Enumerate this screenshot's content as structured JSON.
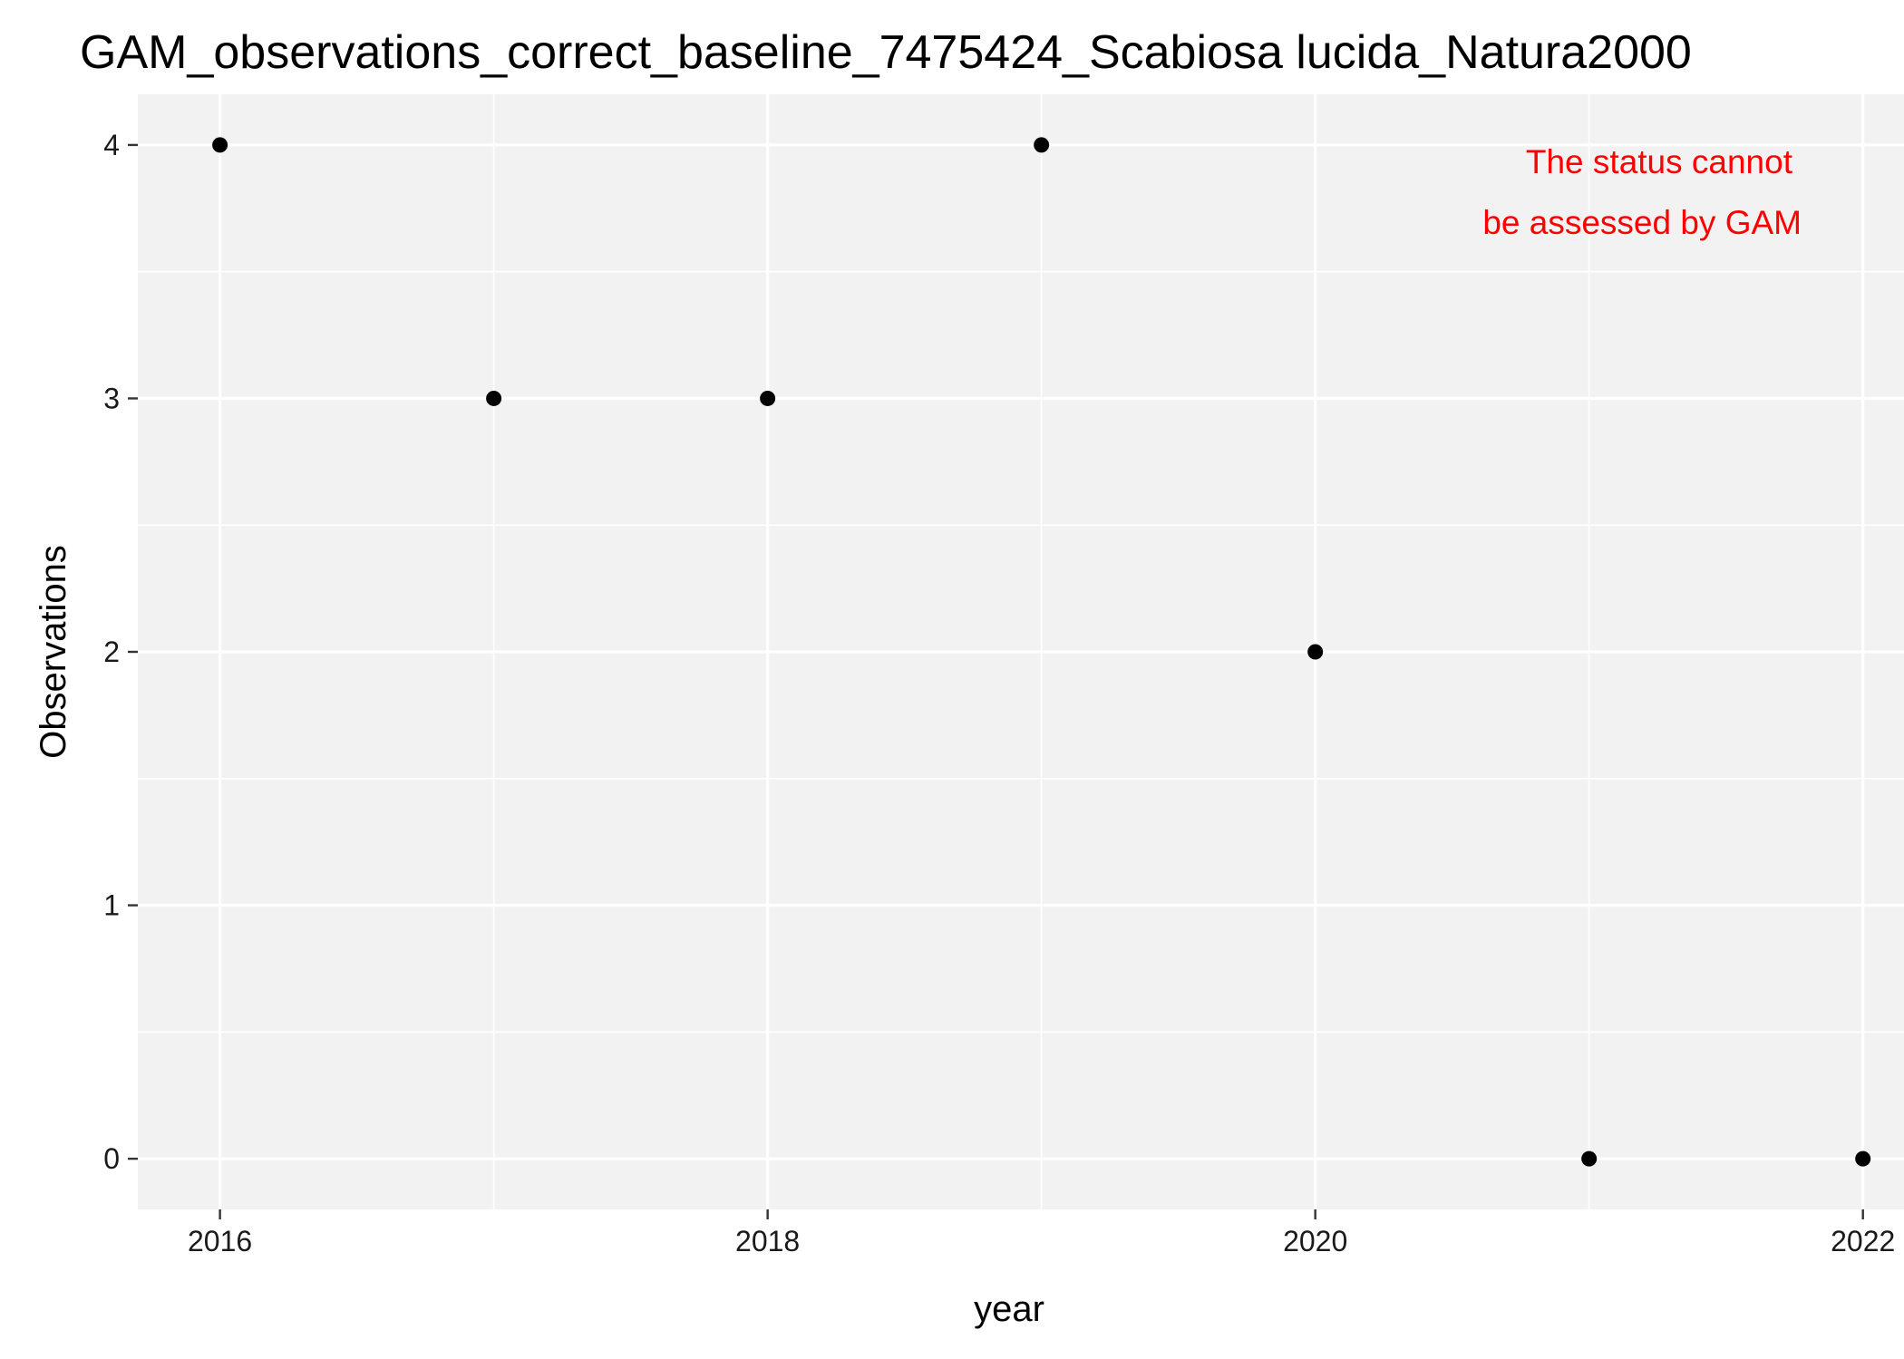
{
  "chart_data": {
    "type": "scatter",
    "title": "GAM_observations_correct_baseline_7475424_Scabiosa lucida_Natura2000",
    "xlabel": "year",
    "ylabel": "Observations",
    "x": [
      2016,
      2017,
      2018,
      2019,
      2020,
      2021,
      2022
    ],
    "y": [
      4,
      3,
      3,
      4,
      2,
      0,
      0
    ],
    "xlim": [
      2015.7,
      2022.15
    ],
    "ylim": [
      -0.2,
      4.2
    ],
    "x_ticks": [
      2016,
      2018,
      2020,
      2022
    ],
    "y_ticks": [
      0,
      1,
      2,
      3,
      4
    ],
    "grid": true,
    "panel_color": "#f2f2f2",
    "grid_color": "#ffffff",
    "point_color": "#000000",
    "annotation": {
      "lines": [
        "The status cannot",
        "be assessed by GAM"
      ],
      "color": "#ff0000"
    }
  }
}
